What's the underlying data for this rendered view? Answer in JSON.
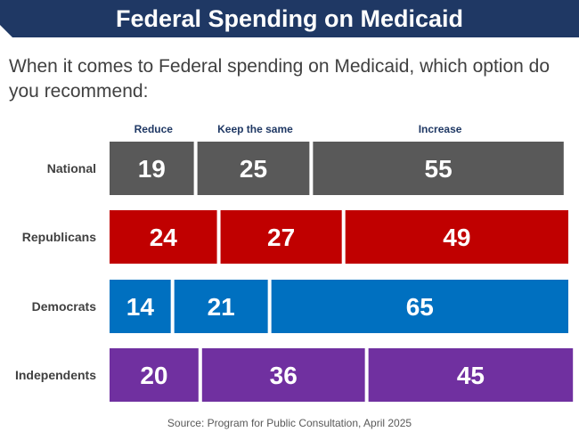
{
  "header": {
    "title": "Federal Spending on Medicaid",
    "question": "When it comes to Federal spending on Medicaid, which option do you recommend:"
  },
  "source": "Source: Program for Public Consultation, April 2025",
  "chart_data": {
    "type": "bar",
    "stacked": true,
    "orientation": "horizontal",
    "title": "Federal Spending on Medicaid",
    "legend": [
      "Reduce",
      "Keep the same",
      "Increase"
    ],
    "legend_placement": "top",
    "categories": [
      "National",
      "Republicans",
      "Democrats",
      "Independents"
    ],
    "series": [
      {
        "name": "Reduce",
        "values": [
          19,
          24,
          14,
          20
        ]
      },
      {
        "name": "Keep the same",
        "values": [
          25,
          27,
          21,
          36
        ]
      },
      {
        "name": "Increase",
        "values": [
          55,
          49,
          65,
          45
        ]
      }
    ],
    "colors": [
      "#595959",
      "#c00000",
      "#0070c0",
      "#7030a0"
    ],
    "xlim": [
      0,
      100
    ],
    "grid": false,
    "value_labels": true
  }
}
